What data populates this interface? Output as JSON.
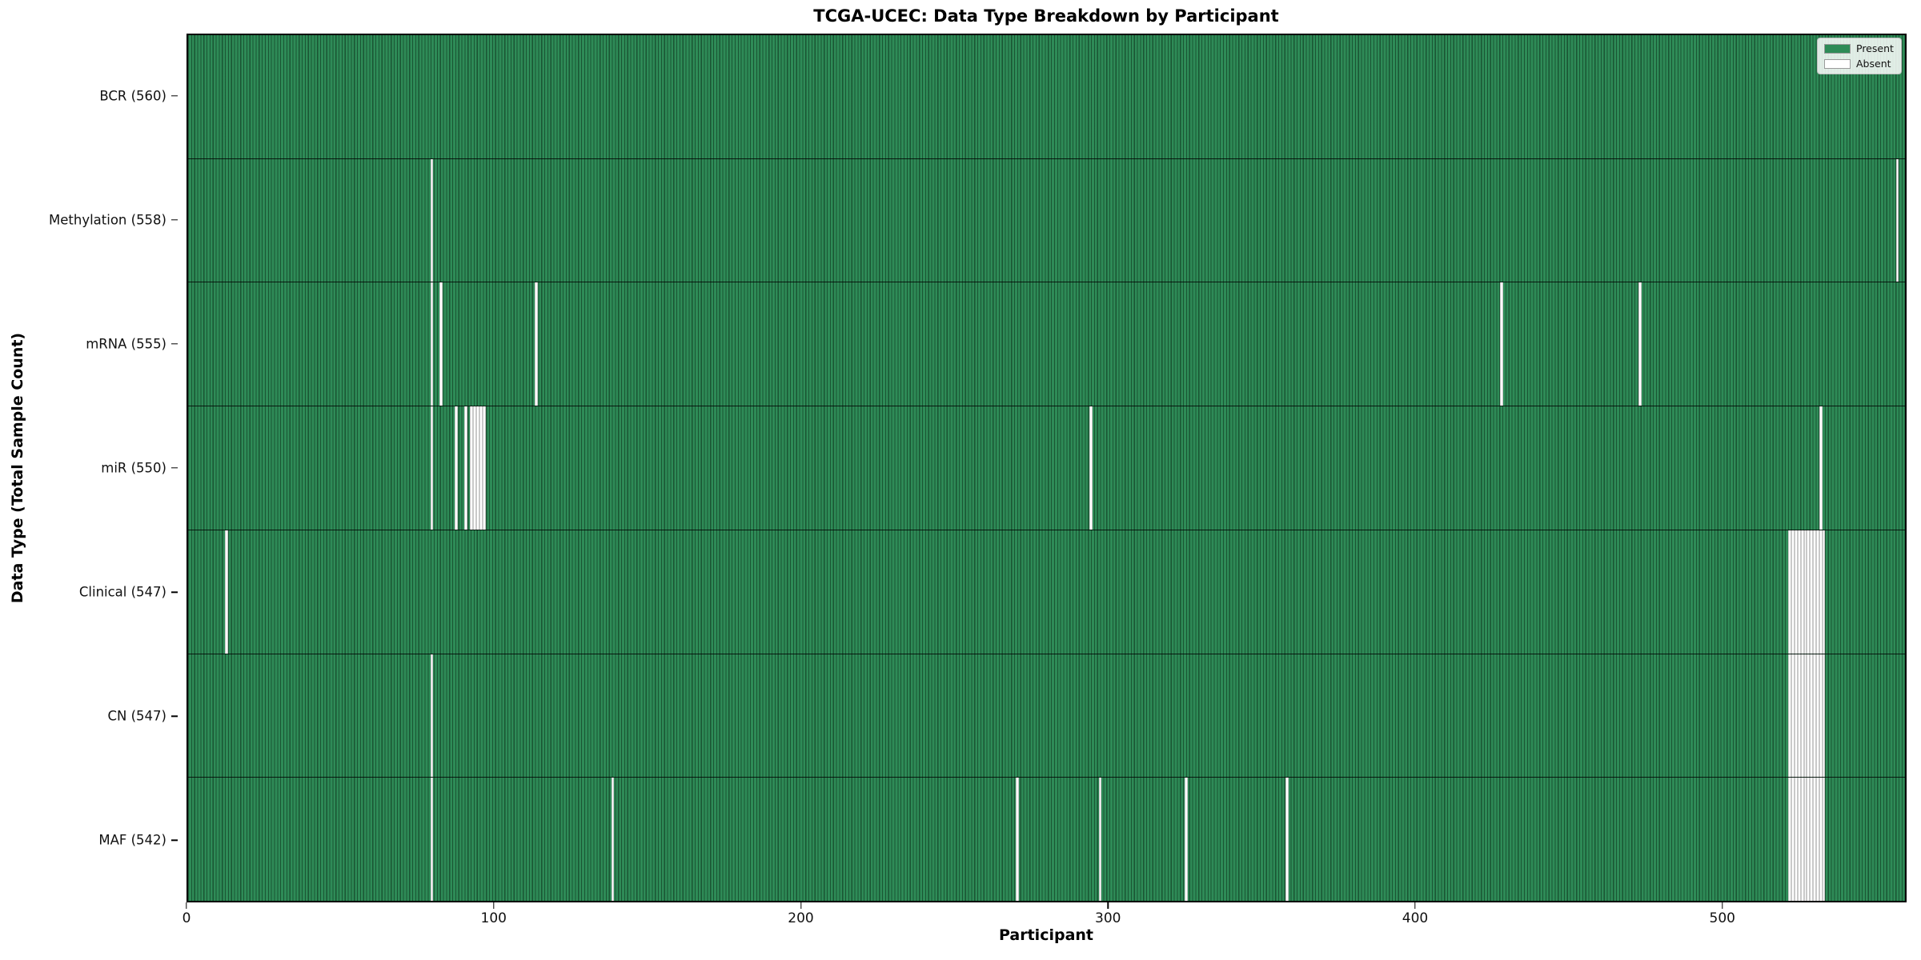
{
  "chart_data": {
    "type": "heatmap",
    "title": "TCGA-UCEC: Data Type Breakdown by Participant",
    "xlabel": "Participant",
    "ylabel": "Data Type (Total Sample Count)",
    "n_participants": 560,
    "xlim": [
      0,
      560
    ],
    "x_ticks": [
      0,
      100,
      200,
      300,
      400,
      500
    ],
    "grid": false,
    "legend_position": "upper right",
    "legend": [
      {
        "label": "Present",
        "color": "#2e8b57"
      },
      {
        "label": "Absent",
        "color": "#ffffff"
      }
    ],
    "colors": {
      "present_fill": "#2e8b57",
      "bar_edge": "#1a4d30",
      "absent_fill": "#ffffff",
      "absent_edge": "#c9c9c9",
      "row_separator": "#000000",
      "plot_border": "#000000"
    },
    "rows": [
      {
        "label": "BCR (560)",
        "data_type": "BCR",
        "present_count": 560,
        "absent_indices": []
      },
      {
        "label": "Methylation (558)",
        "data_type": "Methylation",
        "present_count": 558,
        "absent_indices": [
          79,
          557
        ]
      },
      {
        "label": "mRNA (555)",
        "data_type": "mRNA",
        "present_count": 555,
        "absent_indices": [
          79,
          82,
          113,
          428,
          473
        ]
      },
      {
        "label": "miR (550)",
        "data_type": "miR",
        "present_count": 550,
        "absent_indices": [
          79,
          87,
          90,
          92,
          93,
          94,
          95,
          96,
          294,
          532
        ]
      },
      {
        "label": "Clinical (547)",
        "data_type": "Clinical",
        "present_count": 547,
        "absent_indices": [
          12,
          522,
          523,
          524,
          525,
          526,
          527,
          528,
          529,
          530,
          531,
          532,
          533
        ]
      },
      {
        "label": "CN (547)",
        "data_type": "CN",
        "present_count": 547,
        "absent_indices": [
          79,
          522,
          523,
          524,
          525,
          526,
          527,
          528,
          529,
          530,
          531,
          532,
          533
        ]
      },
      {
        "label": "MAF (542)",
        "data_type": "MAF",
        "present_count": 542,
        "absent_indices": [
          79,
          138,
          270,
          297,
          325,
          358,
          522,
          523,
          524,
          525,
          526,
          527,
          528,
          529,
          530,
          531,
          532,
          533
        ]
      }
    ]
  }
}
